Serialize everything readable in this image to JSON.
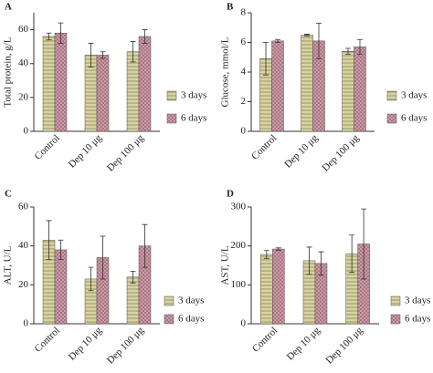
{
  "chart_data": [
    {
      "type": "bar",
      "label": "A",
      "y_label": "Total protein, g/L",
      "categories": [
        "Control",
        "Dep 10 μg",
        "Dep 100 μg"
      ],
      "series": [
        {
          "name": "3 days",
          "color": "#d8d4a0",
          "values": [
            56,
            45,
            47
          ],
          "errors": [
            2,
            7,
            6
          ]
        },
        {
          "name": "6 days",
          "color": "#c99aa6",
          "values": [
            58,
            45,
            56
          ],
          "errors": [
            6,
            2,
            4
          ]
        }
      ],
      "ylim": [
        0,
        70
      ],
      "yticks": [
        0,
        20,
        40,
        60
      ]
    },
    {
      "type": "bar",
      "label": "B",
      "y_label": "Glucose, mmol/L",
      "categories": [
        "Control",
        "Dep 10 μg",
        "Dep 100 μg"
      ],
      "series": [
        {
          "name": "3 days",
          "color": "#d8d4a0",
          "values": [
            4.9,
            6.5,
            5.4
          ],
          "errors": [
            1.1,
            0.05,
            0.2
          ]
        },
        {
          "name": "6 days",
          "color": "#c99aa6",
          "values": [
            6.1,
            6.1,
            5.7
          ],
          "errors": [
            0.1,
            1.2,
            0.5
          ]
        }
      ],
      "ylim": [
        0,
        8
      ],
      "yticks": [
        0,
        2,
        4,
        6,
        8
      ]
    },
    {
      "type": "bar",
      "label": "C",
      "y_label": "ALT, U/L",
      "categories": [
        "Control",
        "Dep 10 μg",
        "Dep 100 μg"
      ],
      "series": [
        {
          "name": "3 days",
          "color": "#d8d4a0",
          "values": [
            43,
            23,
            24
          ],
          "errors": [
            10,
            6,
            3
          ]
        },
        {
          "name": "6 days",
          "color": "#c99aa6",
          "values": [
            38,
            34,
            40
          ],
          "errors": [
            5,
            11,
            11
          ]
        }
      ],
      "ylim": [
        0,
        60
      ],
      "yticks": [
        0,
        20,
        40,
        60
      ]
    },
    {
      "type": "bar",
      "label": "D",
      "y_label": "AST, U/L",
      "categories": [
        "Control",
        "Dep 10 μg",
        "Dep 100 μg"
      ],
      "series": [
        {
          "name": "3 days",
          "color": "#d8d4a0",
          "values": [
            178,
            162,
            180
          ],
          "errors": [
            10,
            35,
            48
          ]
        },
        {
          "name": "6 days",
          "color": "#c99aa6",
          "values": [
            192,
            155,
            205
          ],
          "errors": [
            3,
            30,
            90
          ]
        }
      ],
      "ylim": [
        0,
        300
      ],
      "yticks": [
        0,
        100,
        200,
        300
      ]
    }
  ]
}
